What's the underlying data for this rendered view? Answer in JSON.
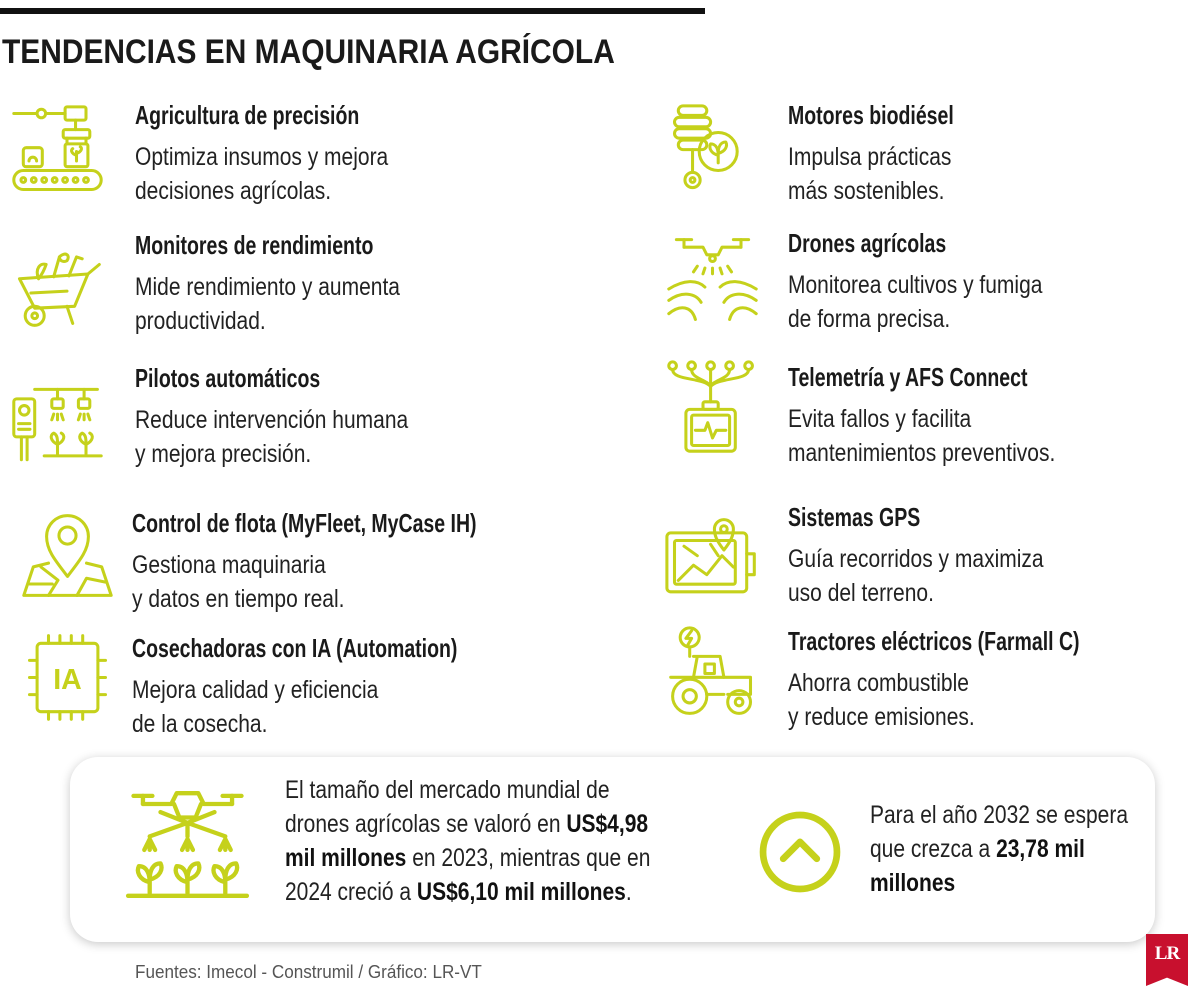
{
  "title": "TENDENCIAS EN MAQUINARIA AGRÍCOLA",
  "left": [
    {
      "title": "Agricultura de precisión",
      "desc": [
        "Optimiza insumos y mejora",
        "decisiones agrícolas."
      ],
      "icon": "precision-robot-icon"
    },
    {
      "title": "Monitores de rendimiento",
      "desc": [
        "Mide rendimiento y aumenta",
        "productividad."
      ],
      "icon": "wheelbarrow-icon"
    },
    {
      "title": "Pilotos automáticos",
      "desc": [
        "Reduce intervención humana",
        "y mejora precisión."
      ],
      "icon": "autopilot-sprinkler-icon"
    },
    {
      "title": "Control de flota (MyFleet, MyCase IH)",
      "desc": [
        "Gestiona maquinaria",
        "y datos en tiempo real."
      ],
      "icon": "map-pin-icon"
    },
    {
      "title": "Cosechadoras con IA (Automation)",
      "desc": [
        "Mejora calidad y eficiencia",
        "de la cosecha."
      ],
      "icon": "ai-chip-icon"
    }
  ],
  "right": [
    {
      "title": "Motores biodiésel",
      "desc": [
        "Impulsa prácticas",
        "más sostenibles."
      ],
      "icon": "biodiesel-leaf-icon"
    },
    {
      "title": "Drones agrícolas",
      "desc": [
        "Monitorea cultivos y fumiga",
        "de forma precisa."
      ],
      "icon": "drone-field-icon"
    },
    {
      "title": "Telemetría y AFS Connect",
      "desc": [
        "Evita fallos y facilita",
        "mantenimientos preventivos."
      ],
      "icon": "telemetry-monitor-icon"
    },
    {
      "title": "Sistemas GPS",
      "desc": [
        "Guía recorridos y maximiza",
        "uso del terreno."
      ],
      "icon": "gps-tablet-icon"
    },
    {
      "title": "Tractores eléctricos (Farmall C)",
      "desc": [
        "Ahorra combustible",
        "y reduce emisiones."
      ],
      "icon": "electric-tractor-icon"
    }
  ],
  "market": {
    "icon": "spraying-drone-icon",
    "lines": [
      [
        {
          "t": "El tamaño del mercado mundial de"
        }
      ],
      [
        {
          "t": "drones agrícolas se valoró en "
        },
        {
          "t": "US$4,98"
        }
      ],
      [
        {
          "t": "mil millones"
        },
        {
          "t": " en 2023, mientras que en"
        }
      ],
      [
        {
          "t": "2024 creció a "
        },
        {
          "t": "US$6,10 mil millones"
        },
        {
          "t": "."
        }
      ]
    ]
  },
  "forecast": {
    "icon": "chevron-up-circle-icon",
    "lines": [
      [
        {
          "t": "Para el año 2032 se espera"
        }
      ],
      [
        {
          "t": "que crezca a "
        },
        {
          "t": "23,78 mil"
        }
      ],
      [
        {
          "t": "millones"
        }
      ]
    ]
  },
  "source": "Fuentes: Imecol - Construmil / Gráfico: LR-VT",
  "logo": "LR",
  "colors": {
    "accent": "#c5d11b",
    "logo": "#c8102e",
    "text": "#1a1a1a"
  }
}
